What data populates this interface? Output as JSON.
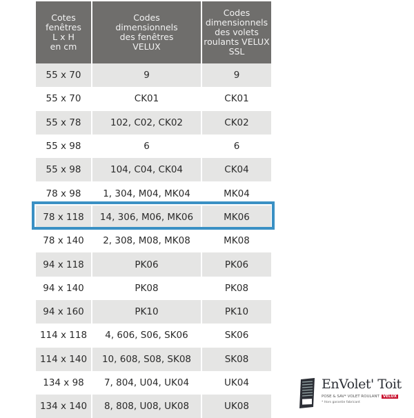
{
  "table": {
    "headers": [
      "Cotes\nfenêtres\nL x H\nen cm",
      "Codes\ndimensionnels\ndes fenêtres\nVELUX",
      "Codes\ndimensionnels\ndes volets\nroulants VELUX\nSSL"
    ],
    "rows": [
      [
        "55 x 70",
        "9",
        "9"
      ],
      [
        "55 x 70",
        "CK01",
        "CK01"
      ],
      [
        "55 x 78",
        "102, C02, CK02",
        "CK02"
      ],
      [
        "55 x 98",
        "6",
        "6"
      ],
      [
        "55 x 98",
        "104, C04, CK04",
        "CK04"
      ],
      [
        "78 x 98",
        "1, 304, M04, MK04",
        "MK04"
      ],
      [
        "78 x 118",
        "14, 306, M06, MK06",
        "MK06"
      ],
      [
        "78 x 140",
        "2, 308, M08, MK08",
        "MK08"
      ],
      [
        "94 x 118",
        "PK06",
        "PK06"
      ],
      [
        "94 x 140",
        "PK08",
        "PK08"
      ],
      [
        "94 x 160",
        "PK10",
        "PK10"
      ],
      [
        "114 x 118",
        "4, 606, S06, SK06",
        "SK06"
      ],
      [
        "114 x 140",
        "10, 608, S08, SK08",
        "SK08"
      ],
      [
        "134 x 98",
        "7, 804, U04, UK04",
        "UK04"
      ],
      [
        "134 x 140",
        "8, 808, U08, UK08",
        "UK08"
      ]
    ],
    "highlighted_row": 6,
    "highlight_color": "#3a90c4",
    "header_bg": "#6f6e6c"
  },
  "logo": {
    "brand": "EnVolet' Toit",
    "tagline": "POSE & SAV* VOLET ROULANT",
    "badge": "VELUX",
    "note": "* Hors garantie fabricant",
    "icon": "roller-shutter-icon"
  }
}
